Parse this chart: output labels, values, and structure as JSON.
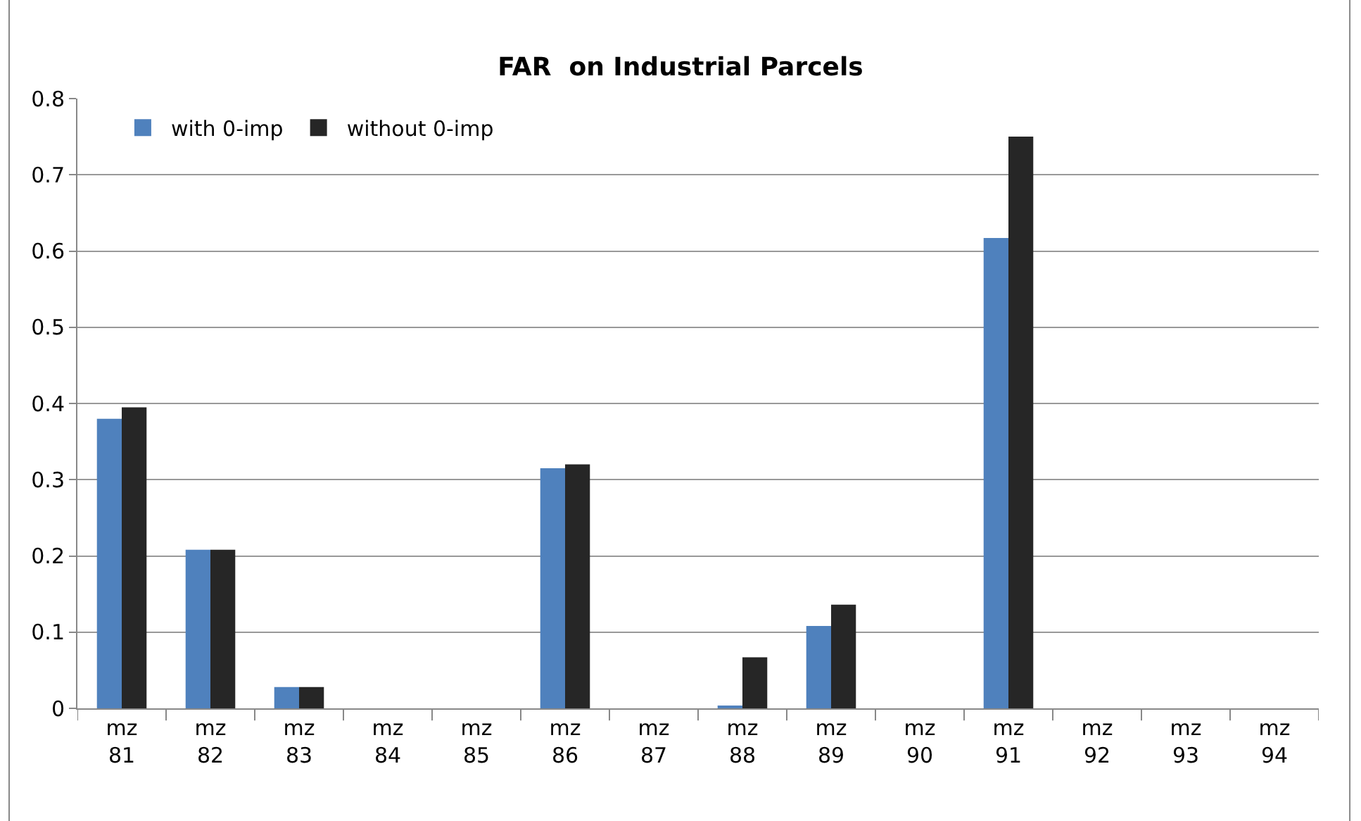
{
  "chart_data": {
    "type": "bar",
    "title": "FAR  on Industrial Parcels",
    "categories": [
      "mz 81",
      "mz 82",
      "mz 83",
      "mz 84",
      "mz 85",
      "mz 86",
      "mz 87",
      "mz 88",
      "mz 89",
      "mz 90",
      "mz 91",
      "mz 92",
      "mz 93",
      "mz 94"
    ],
    "series": [
      {
        "name": "with 0-imp",
        "color": "#4f81bd",
        "values": [
          0.38,
          0.208,
          0.028,
          0,
          0,
          0.315,
          0,
          0.003,
          0.108,
          0,
          0.617,
          0,
          0,
          0
        ]
      },
      {
        "name": "without 0-imp",
        "color": "#262626",
        "values": [
          0.395,
          0.208,
          0.028,
          0,
          0,
          0.32,
          0,
          0.067,
          0.136,
          0,
          0.75,
          0,
          0,
          0
        ]
      }
    ],
    "ylim": [
      0,
      0.8
    ],
    "yticks": [
      0,
      0.1,
      0.2,
      0.3,
      0.4,
      0.5,
      0.6,
      0.7,
      0.8
    ],
    "grid": "y",
    "legend": "top left"
  }
}
